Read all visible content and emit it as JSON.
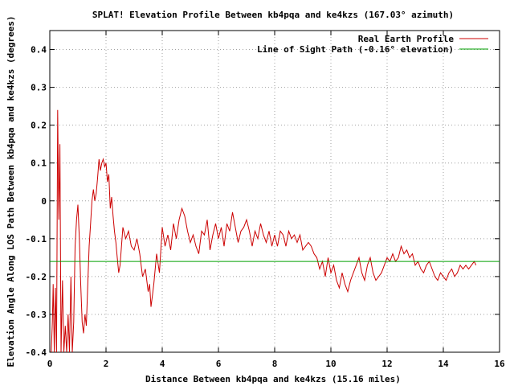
{
  "chart_data": {
    "type": "line",
    "title": "SPLAT! Elevation Profile Between kb4pqa and ke4kzs (167.03° azimuth)",
    "xlabel": "Distance Between kb4pqa and ke4kzs (15.16 miles)",
    "ylabel": "Elevation Angle Along LOS Path Between kb4pqa and ke4kzs (degrees)",
    "xlim": [
      0,
      16
    ],
    "ylim": [
      -0.4,
      0.45
    ],
    "x_ticks": [
      "0",
      "2",
      "4",
      "6",
      "8",
      "10",
      "12",
      "14",
      "16"
    ],
    "y_ticks": [
      "-0.4",
      "-0.3",
      "-0.2",
      "-0.1",
      "0",
      "0.1",
      "0.2",
      "0.3",
      "0.4"
    ],
    "grid": true,
    "legend_position": "top-right",
    "colors": {
      "real_earth": "#cc0000",
      "line_of_sight": "#00a000"
    },
    "series": [
      {
        "name": "Real Earth Profile",
        "color": "#cc0000",
        "x": [
          0.05,
          0.09,
          0.12,
          0.16,
          0.2,
          0.24,
          0.28,
          0.32,
          0.36,
          0.4,
          0.45,
          0.5,
          0.55,
          0.6,
          0.65,
          0.7,
          0.75,
          0.8,
          0.85,
          0.9,
          0.95,
          1.0,
          1.05,
          1.1,
          1.15,
          1.2,
          1.25,
          1.3,
          1.35,
          1.4,
          1.45,
          1.5,
          1.55,
          1.6,
          1.65,
          1.7,
          1.75,
          1.8,
          1.85,
          1.9,
          1.95,
          2.0,
          2.05,
          2.1,
          2.15,
          2.2,
          2.25,
          2.3,
          2.35,
          2.4,
          2.45,
          2.5,
          2.6,
          2.7,
          2.8,
          2.9,
          3.0,
          3.1,
          3.2,
          3.3,
          3.4,
          3.5,
          3.55,
          3.6,
          3.65,
          3.7,
          3.8,
          3.9,
          4.0,
          4.1,
          4.2,
          4.3,
          4.4,
          4.5,
          4.6,
          4.7,
          4.8,
          4.9,
          5.0,
          5.1,
          5.2,
          5.3,
          5.4,
          5.5,
          5.6,
          5.7,
          5.8,
          5.9,
          6.0,
          6.1,
          6.2,
          6.3,
          6.4,
          6.5,
          6.6,
          6.7,
          6.8,
          6.9,
          7.0,
          7.1,
          7.2,
          7.3,
          7.4,
          7.5,
          7.6,
          7.7,
          7.8,
          7.9,
          8.0,
          8.1,
          8.2,
          8.3,
          8.4,
          8.5,
          8.6,
          8.7,
          8.8,
          8.9,
          9.0,
          9.1,
          9.2,
          9.3,
          9.4,
          9.5,
          9.6,
          9.7,
          9.8,
          9.9,
          10.0,
          10.1,
          10.2,
          10.3,
          10.4,
          10.5,
          10.6,
          10.7,
          10.8,
          10.9,
          11.0,
          11.1,
          11.2,
          11.3,
          11.4,
          11.5,
          11.6,
          11.7,
          11.8,
          11.9,
          12.0,
          12.1,
          12.2,
          12.3,
          12.4,
          12.5,
          12.6,
          12.7,
          12.8,
          12.9,
          13.0,
          13.1,
          13.2,
          13.3,
          13.4,
          13.5,
          13.6,
          13.7,
          13.8,
          13.9,
          14.0,
          14.1,
          14.2,
          14.3,
          14.4,
          14.5,
          14.6,
          14.7,
          14.8,
          14.9,
          15.0,
          15.1,
          15.16
        ],
        "y": [
          -0.4,
          -0.32,
          -0.22,
          -0.4,
          -0.23,
          -0.4,
          0.24,
          -0.05,
          0.15,
          -0.4,
          -0.21,
          -0.4,
          -0.33,
          -0.4,
          -0.3,
          -0.4,
          -0.2,
          -0.4,
          -0.32,
          -0.12,
          -0.05,
          -0.01,
          -0.1,
          -0.22,
          -0.32,
          -0.35,
          -0.3,
          -0.33,
          -0.22,
          -0.12,
          -0.06,
          0.0,
          0.03,
          0.0,
          0.02,
          0.06,
          0.11,
          0.08,
          0.1,
          0.11,
          0.09,
          0.1,
          0.05,
          0.07,
          -0.02,
          0.01,
          -0.04,
          -0.08,
          -0.11,
          -0.15,
          -0.19,
          -0.17,
          -0.07,
          -0.1,
          -0.08,
          -0.12,
          -0.13,
          -0.1,
          -0.14,
          -0.2,
          -0.18,
          -0.24,
          -0.22,
          -0.28,
          -0.25,
          -0.22,
          -0.14,
          -0.19,
          -0.07,
          -0.12,
          -0.09,
          -0.13,
          -0.06,
          -0.1,
          -0.05,
          -0.02,
          -0.04,
          -0.08,
          -0.11,
          -0.09,
          -0.12,
          -0.14,
          -0.08,
          -0.09,
          -0.05,
          -0.13,
          -0.09,
          -0.06,
          -0.1,
          -0.07,
          -0.12,
          -0.06,
          -0.08,
          -0.03,
          -0.07,
          -0.11,
          -0.08,
          -0.07,
          -0.05,
          -0.08,
          -0.12,
          -0.08,
          -0.1,
          -0.06,
          -0.09,
          -0.11,
          -0.08,
          -0.12,
          -0.09,
          -0.12,
          -0.08,
          -0.09,
          -0.12,
          -0.08,
          -0.1,
          -0.09,
          -0.11,
          -0.09,
          -0.13,
          -0.12,
          -0.11,
          -0.12,
          -0.14,
          -0.15,
          -0.18,
          -0.16,
          -0.2,
          -0.15,
          -0.19,
          -0.17,
          -0.21,
          -0.23,
          -0.19,
          -0.22,
          -0.24,
          -0.21,
          -0.19,
          -0.17,
          -0.15,
          -0.19,
          -0.21,
          -0.17,
          -0.15,
          -0.19,
          -0.21,
          -0.2,
          -0.19,
          -0.17,
          -0.15,
          -0.16,
          -0.14,
          -0.16,
          -0.15,
          -0.12,
          -0.14,
          -0.13,
          -0.15,
          -0.14,
          -0.17,
          -0.16,
          -0.18,
          -0.19,
          -0.17,
          -0.16,
          -0.18,
          -0.2,
          -0.21,
          -0.19,
          -0.2,
          -0.21,
          -0.19,
          -0.18,
          -0.2,
          -0.19,
          -0.17,
          -0.18,
          -0.17,
          -0.18,
          -0.17,
          -0.16,
          -0.17
        ]
      },
      {
        "name": "Line of Sight Path (-0.16° elevation)",
        "color": "#00a000",
        "x": [
          0,
          16
        ],
        "y": [
          -0.16,
          -0.16
        ]
      }
    ]
  }
}
